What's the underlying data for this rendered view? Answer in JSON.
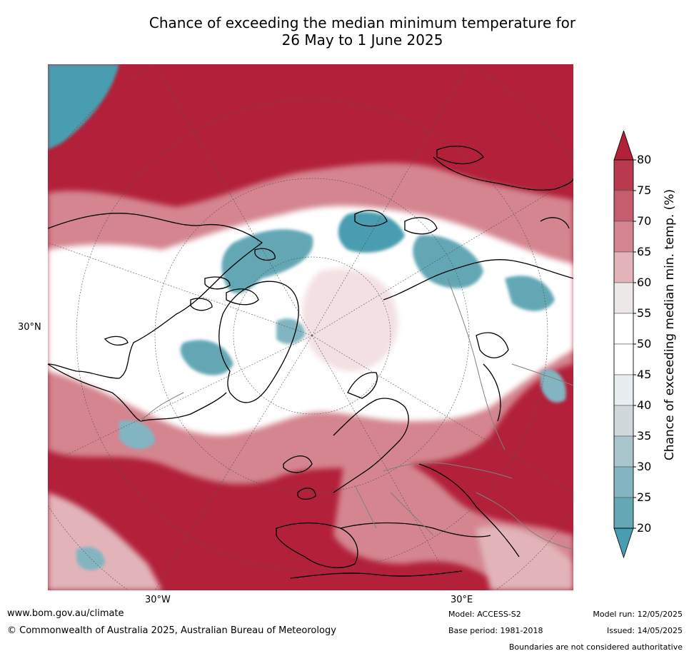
{
  "title_line1": "Chance of exceeding the median minimum temperature for",
  "title_line2": "26 May to 1 June 2025",
  "map": {
    "lat_label": "30°N",
    "lon_labels": [
      "30°W",
      "30°E"
    ],
    "colors": {
      "ocean_high": "#b2203a",
      "neutral": "#ffffff",
      "low": "#4a9db0",
      "coast": "#000000",
      "borders": "#808080"
    }
  },
  "colorbar": {
    "title": "Chance of exceeding median min. temp. (%)",
    "ticks": [
      "80",
      "75",
      "70",
      "65",
      "60",
      "55",
      "50",
      "45",
      "40",
      "35",
      "30",
      "25",
      "20"
    ],
    "bands": [
      {
        "range": "above 80",
        "color": "#b2203a"
      },
      {
        "range": "75-80",
        "color": "#b93a4f"
      },
      {
        "range": "70-75",
        "color": "#c55d6e"
      },
      {
        "range": "65-70",
        "color": "#d4858f"
      },
      {
        "range": "60-65",
        "color": "#e2b4b9"
      },
      {
        "range": "55-60",
        "color": "#ece8e8"
      },
      {
        "range": "50-55",
        "color": "#ffffff"
      },
      {
        "range": "45-50",
        "color": "#ffffff"
      },
      {
        "range": "40-45",
        "color": "#e8edf0"
      },
      {
        "range": "35-40",
        "color": "#d0d8dc"
      },
      {
        "range": "30-35",
        "color": "#a9c6cc"
      },
      {
        "range": "25-30",
        "color": "#82b5c1"
      },
      {
        "range": "20-25",
        "color": "#64a7b5"
      },
      {
        "range": "below 20",
        "color": "#4a9db0"
      }
    ]
  },
  "footer": {
    "website": "www.bom.gov.au/climate",
    "copyright": "© Commonwealth of Australia 2025, Australian Bureau of Meteorology",
    "model": "Model: ACCESS-S2",
    "base_period": "Base period: 1981-2018",
    "model_run": "Model run: 12/05/2025",
    "issued": "Issued: 14/05/2025",
    "disclaimer": "Boundaries are not considered authoritative"
  }
}
